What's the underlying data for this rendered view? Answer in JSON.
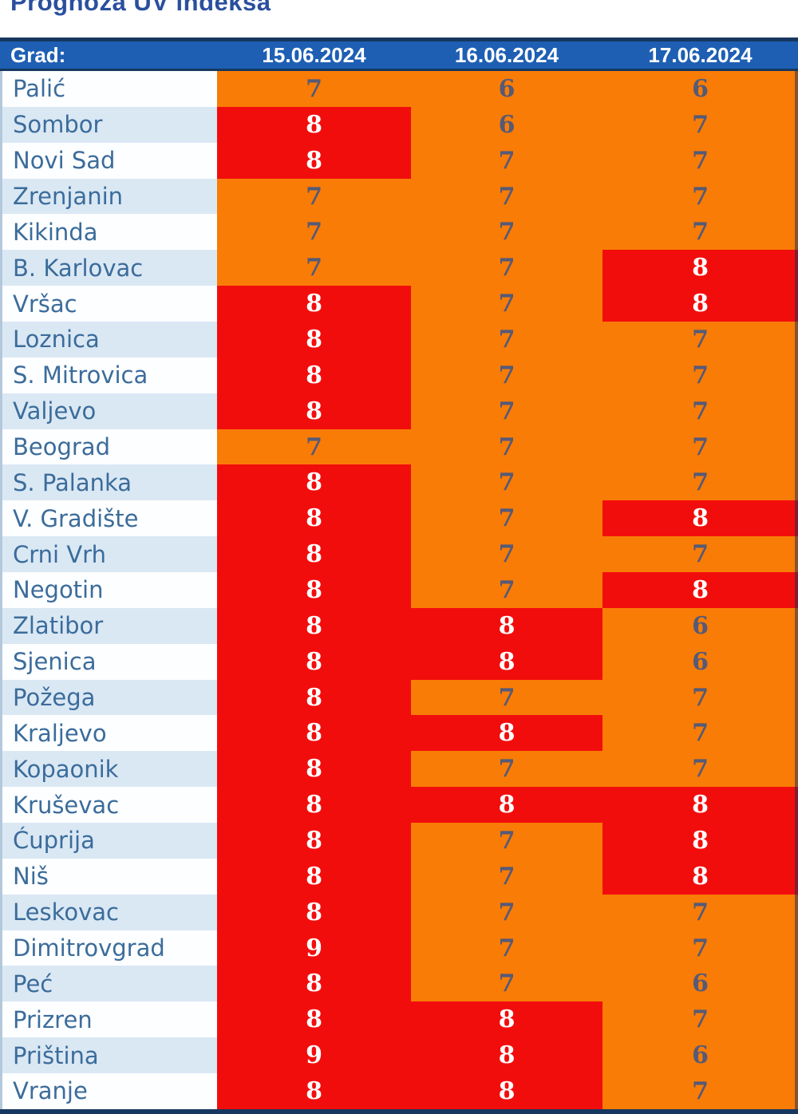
{
  "title": "Prognoza UV indeksa",
  "table": {
    "header": {
      "city_label": "Grad:",
      "dates": [
        "15.06.2024",
        "16.06.2024",
        "17.06.2024"
      ]
    },
    "rows": [
      {
        "city": "Palić",
        "values": [
          7,
          6,
          6
        ]
      },
      {
        "city": "Sombor",
        "values": [
          8,
          6,
          7
        ]
      },
      {
        "city": "Novi Sad",
        "values": [
          8,
          7,
          7
        ]
      },
      {
        "city": "Zrenjanin",
        "values": [
          7,
          7,
          7
        ]
      },
      {
        "city": "Kikinda",
        "values": [
          7,
          7,
          7
        ]
      },
      {
        "city": "B. Karlovac",
        "values": [
          7,
          7,
          8
        ]
      },
      {
        "city": "Vršac",
        "values": [
          8,
          7,
          8
        ]
      },
      {
        "city": "Loznica",
        "values": [
          8,
          7,
          7
        ]
      },
      {
        "city": "S. Mitrovica",
        "values": [
          8,
          7,
          7
        ]
      },
      {
        "city": "Valjevo",
        "values": [
          8,
          7,
          7
        ]
      },
      {
        "city": "Beograd",
        "values": [
          7,
          7,
          7
        ]
      },
      {
        "city": "S. Palanka",
        "values": [
          8,
          7,
          7
        ]
      },
      {
        "city": "V. Gradište",
        "values": [
          8,
          7,
          8
        ]
      },
      {
        "city": "Crni Vrh",
        "values": [
          8,
          7,
          7
        ]
      },
      {
        "city": "Negotin",
        "values": [
          8,
          7,
          8
        ]
      },
      {
        "city": "Zlatibor",
        "values": [
          8,
          8,
          6
        ]
      },
      {
        "city": "Sjenica",
        "values": [
          8,
          8,
          6
        ]
      },
      {
        "city": "Požega",
        "values": [
          8,
          7,
          7
        ]
      },
      {
        "city": "Kraljevo",
        "values": [
          8,
          8,
          7
        ]
      },
      {
        "city": "Kopaonik",
        "values": [
          8,
          7,
          7
        ]
      },
      {
        "city": "Kruševac",
        "values": [
          8,
          8,
          8
        ]
      },
      {
        "city": "Ćuprija",
        "values": [
          8,
          7,
          8
        ]
      },
      {
        "city": "Niš",
        "values": [
          8,
          7,
          8
        ]
      },
      {
        "city": "Leskovac",
        "values": [
          8,
          7,
          7
        ]
      },
      {
        "city": "Dimitrovgrad",
        "values": [
          9,
          7,
          7
        ]
      },
      {
        "city": "Peć",
        "values": [
          8,
          7,
          6
        ]
      },
      {
        "city": "Prizren",
        "values": [
          8,
          8,
          7
        ]
      },
      {
        "city": "Priština",
        "values": [
          9,
          8,
          6
        ]
      },
      {
        "city": "Vranje",
        "values": [
          8,
          8,
          7
        ]
      }
    ]
  },
  "colors": {
    "title_text": "#2A4F9E",
    "header_blue": "#1E5FB4",
    "header_text": "#FFFFFF",
    "navy_border": "#16375F",
    "row_even_bg": "#FDFEFF",
    "row_odd_bg": "#DAE8F4",
    "city_text": "#3B6C9B",
    "uv_high_bg": "#F20D0D",
    "uv_moderate_bg": "#F97C06",
    "uv_high_text": "#FFFFFF",
    "uv_moderate_text": "#555A77",
    "high_threshold": 8
  }
}
